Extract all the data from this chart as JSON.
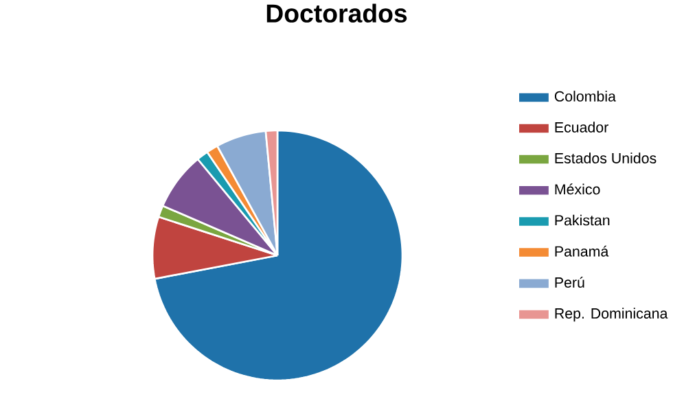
{
  "chart_data": {
    "type": "pie",
    "title": "Doctorados",
    "categories": [
      "Colombia",
      "Ecuador",
      "Estados Unidos",
      "México",
      "Pakistan",
      "Panamá",
      "Perú",
      "Rep. Dominicana"
    ],
    "values": [
      72,
      8,
      1.5,
      7.5,
      1.5,
      1.5,
      6.5,
      1.5
    ],
    "colors": [
      "#1f72aa",
      "#c0443f",
      "#7aa640",
      "#7a5293",
      "#1a9bb0",
      "#f48b35",
      "#8aaad2",
      "#e89592"
    ],
    "legend": "right"
  }
}
